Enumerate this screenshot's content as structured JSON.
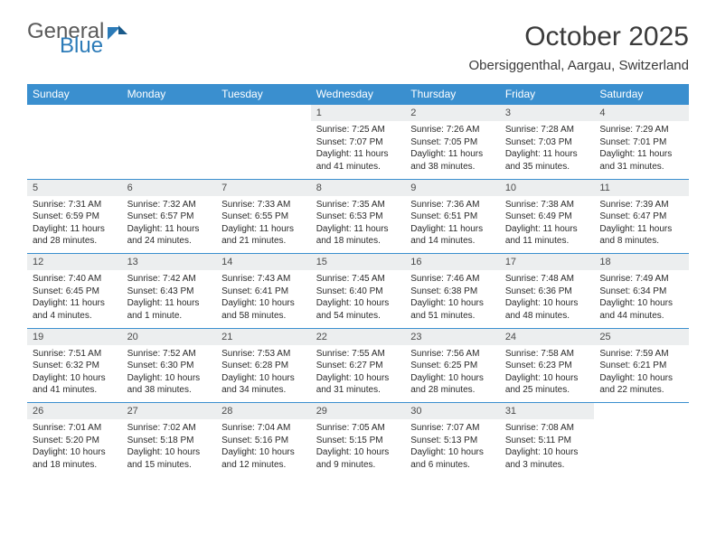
{
  "logo": {
    "word1": "General",
    "word2": "Blue"
  },
  "header": {
    "month_title": "October 2025",
    "location": "Obersiggenthal, Aargau, Switzerland"
  },
  "colors": {
    "header_bg": "#3a8fcf",
    "header_text": "#ffffff",
    "daynum_bg": "#eceeef",
    "divider": "#3a8fcf",
    "text": "#2a2a2a"
  },
  "daynames": [
    "Sunday",
    "Monday",
    "Tuesday",
    "Wednesday",
    "Thursday",
    "Friday",
    "Saturday"
  ],
  "weeks": [
    {
      "nums": [
        "",
        "",
        "",
        "1",
        "2",
        "3",
        "4"
      ],
      "cells": [
        {},
        {},
        {},
        {
          "sunrise": "Sunrise: 7:25 AM",
          "sunset": "Sunset: 7:07 PM",
          "day1": "Daylight: 11 hours",
          "day2": "and 41 minutes."
        },
        {
          "sunrise": "Sunrise: 7:26 AM",
          "sunset": "Sunset: 7:05 PM",
          "day1": "Daylight: 11 hours",
          "day2": "and 38 minutes."
        },
        {
          "sunrise": "Sunrise: 7:28 AM",
          "sunset": "Sunset: 7:03 PM",
          "day1": "Daylight: 11 hours",
          "day2": "and 35 minutes."
        },
        {
          "sunrise": "Sunrise: 7:29 AM",
          "sunset": "Sunset: 7:01 PM",
          "day1": "Daylight: 11 hours",
          "day2": "and 31 minutes."
        }
      ]
    },
    {
      "nums": [
        "5",
        "6",
        "7",
        "8",
        "9",
        "10",
        "11"
      ],
      "cells": [
        {
          "sunrise": "Sunrise: 7:31 AM",
          "sunset": "Sunset: 6:59 PM",
          "day1": "Daylight: 11 hours",
          "day2": "and 28 minutes."
        },
        {
          "sunrise": "Sunrise: 7:32 AM",
          "sunset": "Sunset: 6:57 PM",
          "day1": "Daylight: 11 hours",
          "day2": "and 24 minutes."
        },
        {
          "sunrise": "Sunrise: 7:33 AM",
          "sunset": "Sunset: 6:55 PM",
          "day1": "Daylight: 11 hours",
          "day2": "and 21 minutes."
        },
        {
          "sunrise": "Sunrise: 7:35 AM",
          "sunset": "Sunset: 6:53 PM",
          "day1": "Daylight: 11 hours",
          "day2": "and 18 minutes."
        },
        {
          "sunrise": "Sunrise: 7:36 AM",
          "sunset": "Sunset: 6:51 PM",
          "day1": "Daylight: 11 hours",
          "day2": "and 14 minutes."
        },
        {
          "sunrise": "Sunrise: 7:38 AM",
          "sunset": "Sunset: 6:49 PM",
          "day1": "Daylight: 11 hours",
          "day2": "and 11 minutes."
        },
        {
          "sunrise": "Sunrise: 7:39 AM",
          "sunset": "Sunset: 6:47 PM",
          "day1": "Daylight: 11 hours",
          "day2": "and 8 minutes."
        }
      ]
    },
    {
      "nums": [
        "12",
        "13",
        "14",
        "15",
        "16",
        "17",
        "18"
      ],
      "cells": [
        {
          "sunrise": "Sunrise: 7:40 AM",
          "sunset": "Sunset: 6:45 PM",
          "day1": "Daylight: 11 hours",
          "day2": "and 4 minutes."
        },
        {
          "sunrise": "Sunrise: 7:42 AM",
          "sunset": "Sunset: 6:43 PM",
          "day1": "Daylight: 11 hours",
          "day2": "and 1 minute."
        },
        {
          "sunrise": "Sunrise: 7:43 AM",
          "sunset": "Sunset: 6:41 PM",
          "day1": "Daylight: 10 hours",
          "day2": "and 58 minutes."
        },
        {
          "sunrise": "Sunrise: 7:45 AM",
          "sunset": "Sunset: 6:40 PM",
          "day1": "Daylight: 10 hours",
          "day2": "and 54 minutes."
        },
        {
          "sunrise": "Sunrise: 7:46 AM",
          "sunset": "Sunset: 6:38 PM",
          "day1": "Daylight: 10 hours",
          "day2": "and 51 minutes."
        },
        {
          "sunrise": "Sunrise: 7:48 AM",
          "sunset": "Sunset: 6:36 PM",
          "day1": "Daylight: 10 hours",
          "day2": "and 48 minutes."
        },
        {
          "sunrise": "Sunrise: 7:49 AM",
          "sunset": "Sunset: 6:34 PM",
          "day1": "Daylight: 10 hours",
          "day2": "and 44 minutes."
        }
      ]
    },
    {
      "nums": [
        "19",
        "20",
        "21",
        "22",
        "23",
        "24",
        "25"
      ],
      "cells": [
        {
          "sunrise": "Sunrise: 7:51 AM",
          "sunset": "Sunset: 6:32 PM",
          "day1": "Daylight: 10 hours",
          "day2": "and 41 minutes."
        },
        {
          "sunrise": "Sunrise: 7:52 AM",
          "sunset": "Sunset: 6:30 PM",
          "day1": "Daylight: 10 hours",
          "day2": "and 38 minutes."
        },
        {
          "sunrise": "Sunrise: 7:53 AM",
          "sunset": "Sunset: 6:28 PM",
          "day1": "Daylight: 10 hours",
          "day2": "and 34 minutes."
        },
        {
          "sunrise": "Sunrise: 7:55 AM",
          "sunset": "Sunset: 6:27 PM",
          "day1": "Daylight: 10 hours",
          "day2": "and 31 minutes."
        },
        {
          "sunrise": "Sunrise: 7:56 AM",
          "sunset": "Sunset: 6:25 PM",
          "day1": "Daylight: 10 hours",
          "day2": "and 28 minutes."
        },
        {
          "sunrise": "Sunrise: 7:58 AM",
          "sunset": "Sunset: 6:23 PM",
          "day1": "Daylight: 10 hours",
          "day2": "and 25 minutes."
        },
        {
          "sunrise": "Sunrise: 7:59 AM",
          "sunset": "Sunset: 6:21 PM",
          "day1": "Daylight: 10 hours",
          "day2": "and 22 minutes."
        }
      ]
    },
    {
      "nums": [
        "26",
        "27",
        "28",
        "29",
        "30",
        "31",
        ""
      ],
      "cells": [
        {
          "sunrise": "Sunrise: 7:01 AM",
          "sunset": "Sunset: 5:20 PM",
          "day1": "Daylight: 10 hours",
          "day2": "and 18 minutes."
        },
        {
          "sunrise": "Sunrise: 7:02 AM",
          "sunset": "Sunset: 5:18 PM",
          "day1": "Daylight: 10 hours",
          "day2": "and 15 minutes."
        },
        {
          "sunrise": "Sunrise: 7:04 AM",
          "sunset": "Sunset: 5:16 PM",
          "day1": "Daylight: 10 hours",
          "day2": "and 12 minutes."
        },
        {
          "sunrise": "Sunrise: 7:05 AM",
          "sunset": "Sunset: 5:15 PM",
          "day1": "Daylight: 10 hours",
          "day2": "and 9 minutes."
        },
        {
          "sunrise": "Sunrise: 7:07 AM",
          "sunset": "Sunset: 5:13 PM",
          "day1": "Daylight: 10 hours",
          "day2": "and 6 minutes."
        },
        {
          "sunrise": "Sunrise: 7:08 AM",
          "sunset": "Sunset: 5:11 PM",
          "day1": "Daylight: 10 hours",
          "day2": "and 3 minutes."
        },
        {}
      ]
    }
  ]
}
